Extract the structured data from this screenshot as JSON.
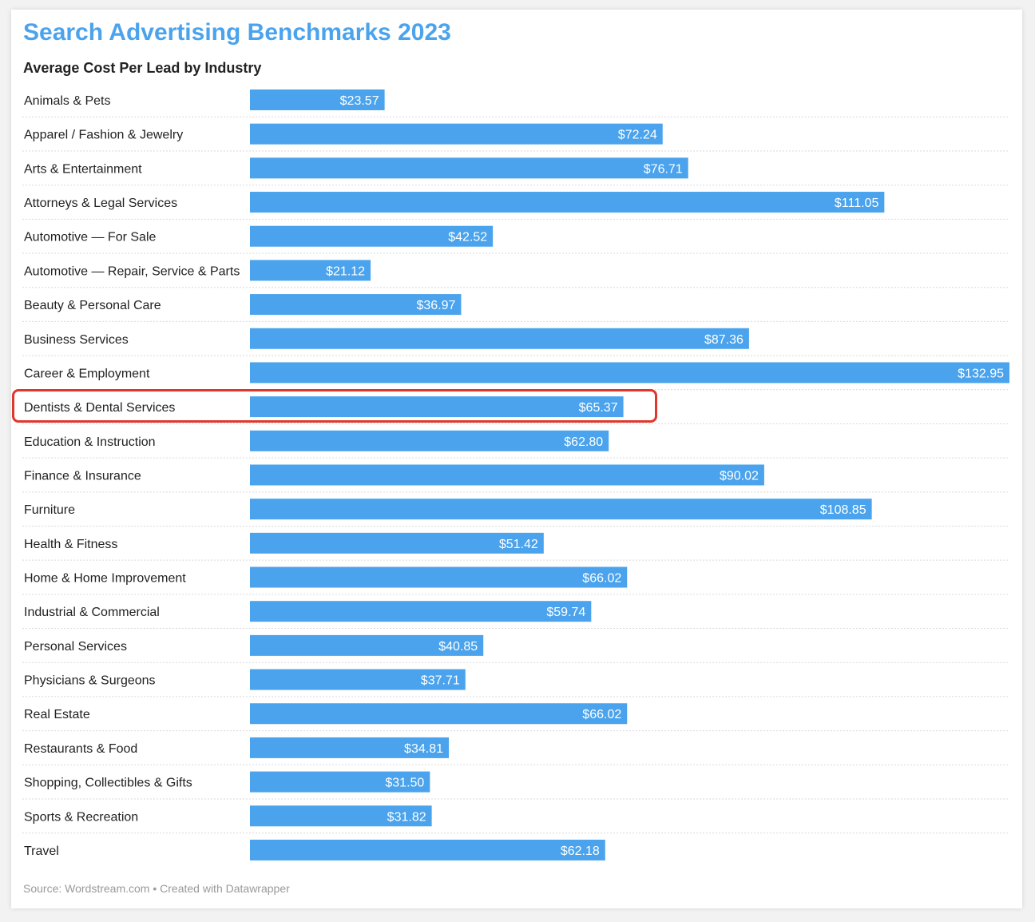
{
  "header": {
    "title": "Search Advertising Benchmarks 2023",
    "subtitle": "Average Cost Per Lead by Industry"
  },
  "footer": {
    "source": "Source: Wordstream.com • Created with Datawrapper"
  },
  "colors": {
    "title": "#4aa3ec",
    "bar": "#4aa3ec",
    "highlight": "#e0372c"
  },
  "highlighted_category": "Dentists & Dental Services",
  "chart_data": {
    "type": "bar",
    "orientation": "horizontal",
    "title": "Search Advertising Benchmarks 2023",
    "subtitle": "Average Cost Per Lead by Industry",
    "value_prefix": "$",
    "grid": false,
    "categories": [
      "Animals & Pets",
      "Apparel / Fashion & Jewelry",
      "Arts & Entertainment",
      "Attorneys & Legal Services",
      "Automotive — For Sale",
      "Automotive — Repair, Service & Parts",
      "Beauty & Personal Care",
      "Business Services",
      "Career & Employment",
      "Dentists & Dental Services",
      "Education & Instruction",
      "Finance & Insurance",
      "Furniture",
      "Health & Fitness",
      "Home & Home Improvement",
      "Industrial & Commercial",
      "Personal Services",
      "Physicians & Surgeons",
      "Real Estate",
      "Restaurants & Food",
      "Shopping, Collectibles & Gifts",
      "Sports & Recreation",
      "Travel"
    ],
    "values": [
      23.57,
      72.24,
      76.71,
      111.05,
      42.52,
      21.12,
      36.97,
      87.36,
      132.95,
      65.37,
      62.8,
      90.02,
      108.85,
      51.42,
      66.02,
      59.74,
      40.85,
      37.71,
      66.02,
      34.81,
      31.5,
      31.82,
      62.18
    ],
    "value_labels": [
      "$23.57",
      "$72.24",
      "$76.71",
      "$111.05",
      "$42.52",
      "$21.12",
      "$36.97",
      "$87.36",
      "$132.95",
      "$65.37",
      "$62.80",
      "$90.02",
      "$108.85",
      "$51.42",
      "$66.02",
      "$59.74",
      "$40.85",
      "$37.71",
      "$66.02",
      "$34.81",
      "$31.50",
      "$31.82",
      "$62.18"
    ],
    "xlim": [
      0,
      132.95
    ]
  }
}
